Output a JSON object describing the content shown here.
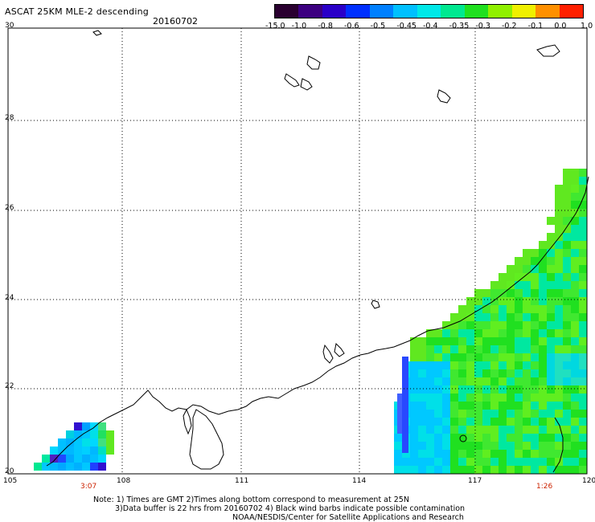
{
  "header": {
    "title": "ASCAT 25KM MLE-2 descending",
    "date": "20160702"
  },
  "colorbar": {
    "labels": [
      "-15.0",
      "-1.0",
      "-0.8",
      "-0.6",
      "-0.5",
      "-0.45",
      "-0.4",
      "-0.35",
      "-0.3",
      "-0.2",
      "-0.1",
      "0.0",
      "1.0"
    ],
    "colors": [
      "#2a0030",
      "#3c0080",
      "#2a00c8",
      "#0030ff",
      "#0080ff",
      "#00c0ff",
      "#00e8e8",
      "#00e890",
      "#20e020",
      "#90f000",
      "#f0f000",
      "#ff9000",
      "#ff2000"
    ]
  },
  "axes": {
    "lat_labels": [
      "30",
      "28",
      "26",
      "24",
      "22",
      "20"
    ],
    "lon_labels": [
      "105",
      "108",
      "111",
      "114",
      "117",
      "120"
    ]
  },
  "times": {
    "left": "3:07",
    "right": "1:26"
  },
  "notes": {
    "line1": "Note: 1) Times are GMT 2)Times along bottom correspond to measurement at 25N",
    "line2": "3)Data buffer is 22 hrs from 20160702 4) Black wind barbs indicate possible contamination",
    "line3": "NOAA/NESDIS/Center for Satellite Applications and Research"
  }
}
